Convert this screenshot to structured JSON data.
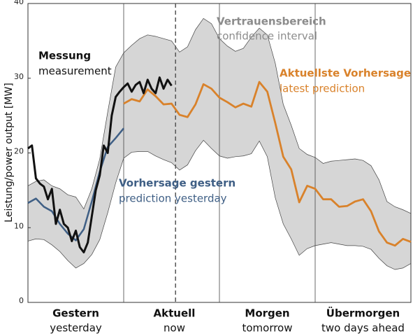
{
  "chart_data": {
    "type": "line",
    "ylabel": "Leistung/power output [MW]",
    "xlim": [
      0,
      96
    ],
    "ylim": [
      0,
      40
    ],
    "yticks": [
      0,
      10,
      20,
      30,
      40
    ],
    "xticks": [
      24,
      48,
      72
    ],
    "now": 37,
    "sections": [
      {
        "label": "Gestern",
        "sublabel": "yesterday"
      },
      {
        "label": "Aktuell",
        "sublabel": "now"
      },
      {
        "label": "Morgen",
        "sublabel": "tomorrow"
      },
      {
        "label": "Übermorgen",
        "sublabel": "two days ahead"
      }
    ],
    "band": {
      "name": "Vertrauensbereich",
      "translation": "confidence interval",
      "color": "#d6d6d6",
      "label_color": "#8c8c8c",
      "x": [
        0,
        2,
        4,
        6,
        8,
        10,
        12,
        14,
        16,
        18,
        20,
        22,
        24,
        26,
        28,
        30,
        32,
        34,
        36,
        38,
        40,
        42,
        44,
        46,
        48,
        50,
        52,
        54,
        56,
        58,
        60,
        62,
        64,
        66,
        68,
        70,
        72,
        74,
        76,
        78,
        80,
        82,
        84,
        86,
        88,
        90,
        92,
        94,
        96
      ],
      "upper": [
        15.6,
        16.2,
        16.4,
        15.6,
        15.2,
        14.4,
        14.1,
        12.5,
        15.2,
        19.2,
        25.5,
        31.5,
        33.4,
        34.4,
        35.3,
        35.8,
        35.6,
        35.3,
        35,
        33.5,
        34.2,
        36.5,
        38,
        37.3,
        35.3,
        34.3,
        33.6,
        34,
        35.5,
        36.7,
        35.8,
        32,
        26.5,
        23.7,
        20.6,
        19.8,
        19.4,
        18.6,
        18.9,
        19,
        19.1,
        19.2,
        19,
        18.3,
        16.4,
        13.5,
        12.8,
        12.4,
        11.9
      ],
      "lower": [
        8.2,
        8.5,
        8.4,
        7.7,
        6.8,
        5.6,
        4.6,
        5.2,
        6.4,
        8.4,
        12,
        16,
        19.3,
        20.1,
        20.2,
        20.2,
        19.6,
        19.1,
        18.7,
        17.7,
        18.4,
        20.3,
        21.7,
        20.6,
        19.6,
        19.3,
        19.5,
        19.6,
        19.9,
        21.6,
        19.5,
        14,
        10.5,
        8.5,
        6.3,
        7.2,
        7.6,
        7.8,
        8,
        7.8,
        7.6,
        7.6,
        7.5,
        7.1,
        5.9,
        4.9,
        4.4,
        4.6,
        5.2
      ]
    },
    "series": [
      {
        "name": "Vorhersage gestern",
        "translation": "prediction yesterday",
        "color": "#3f5f85",
        "x": [
          0,
          2,
          4,
          6,
          8,
          10,
          12,
          14,
          16,
          18,
          20,
          22,
          24
        ],
        "values": [
          13.3,
          13.9,
          12.8,
          12.2,
          10.5,
          9.2,
          8.3,
          9.8,
          13.5,
          17.5,
          20.8,
          22,
          23.3
        ]
      },
      {
        "name": "Aktuellste Vorhersage",
        "translation": "latest prediction",
        "color": "#d9822b",
        "x": [
          24,
          26,
          28,
          30,
          32,
          34,
          36,
          38,
          40,
          42,
          44,
          46,
          48,
          50,
          52,
          54,
          56,
          58,
          60,
          62,
          64,
          66,
          68,
          70,
          72,
          74,
          76,
          78,
          80,
          82,
          84,
          86,
          88,
          90,
          92,
          94,
          96
        ],
        "values": [
          26.6,
          27.2,
          26.9,
          28.5,
          27.6,
          26.5,
          26.6,
          25.1,
          24.8,
          26.5,
          29.2,
          28.6,
          27.4,
          26.8,
          26.1,
          26.6,
          26.2,
          29.5,
          28.2,
          24,
          19.5,
          17.8,
          13.4,
          15.6,
          15.2,
          13.8,
          13.8,
          12.8,
          12.9,
          13.5,
          13.8,
          12.2,
          9.5,
          8,
          7.6,
          8.5,
          8.1
        ]
      },
      {
        "name": "Messung",
        "translation": "measurement",
        "color": "#111111",
        "x": [
          0,
          1,
          2,
          3,
          4,
          5,
          6,
          7,
          8,
          9,
          10,
          11,
          12,
          13,
          14,
          15,
          16,
          17,
          18,
          19,
          20,
          21,
          22,
          23,
          24,
          25,
          26,
          27,
          28,
          29,
          30,
          31,
          32,
          33,
          34,
          35,
          36
        ],
        "values": [
          20.6,
          21,
          16.6,
          15.9,
          15.5,
          13.8,
          15.2,
          10.5,
          12.4,
          10.5,
          10,
          8.2,
          9.6,
          7.4,
          6.7,
          8,
          11.5,
          15,
          17,
          21,
          20,
          25,
          27.5,
          28.2,
          28.8,
          29.3,
          28.2,
          29.1,
          29.5,
          28,
          29.8,
          28.6,
          28,
          30.1,
          28.6,
          29.8,
          29
        ]
      }
    ]
  }
}
